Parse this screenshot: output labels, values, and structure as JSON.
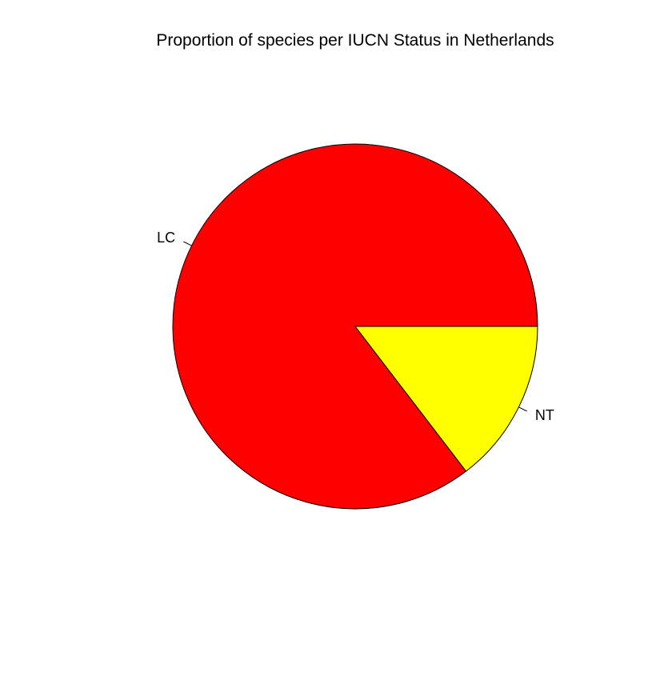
{
  "chart_data": {
    "type": "pie",
    "title": "Proportion of species per IUCN Status in Netherlands",
    "categories": [
      "LC",
      "NT"
    ],
    "values": [
      85.4,
      14.6
    ],
    "colors": [
      "#ff0000",
      "#ffff00"
    ],
    "start_angle_deg": 0,
    "direction": "counterclockwise",
    "legend": "none",
    "border_color": "#000000"
  }
}
